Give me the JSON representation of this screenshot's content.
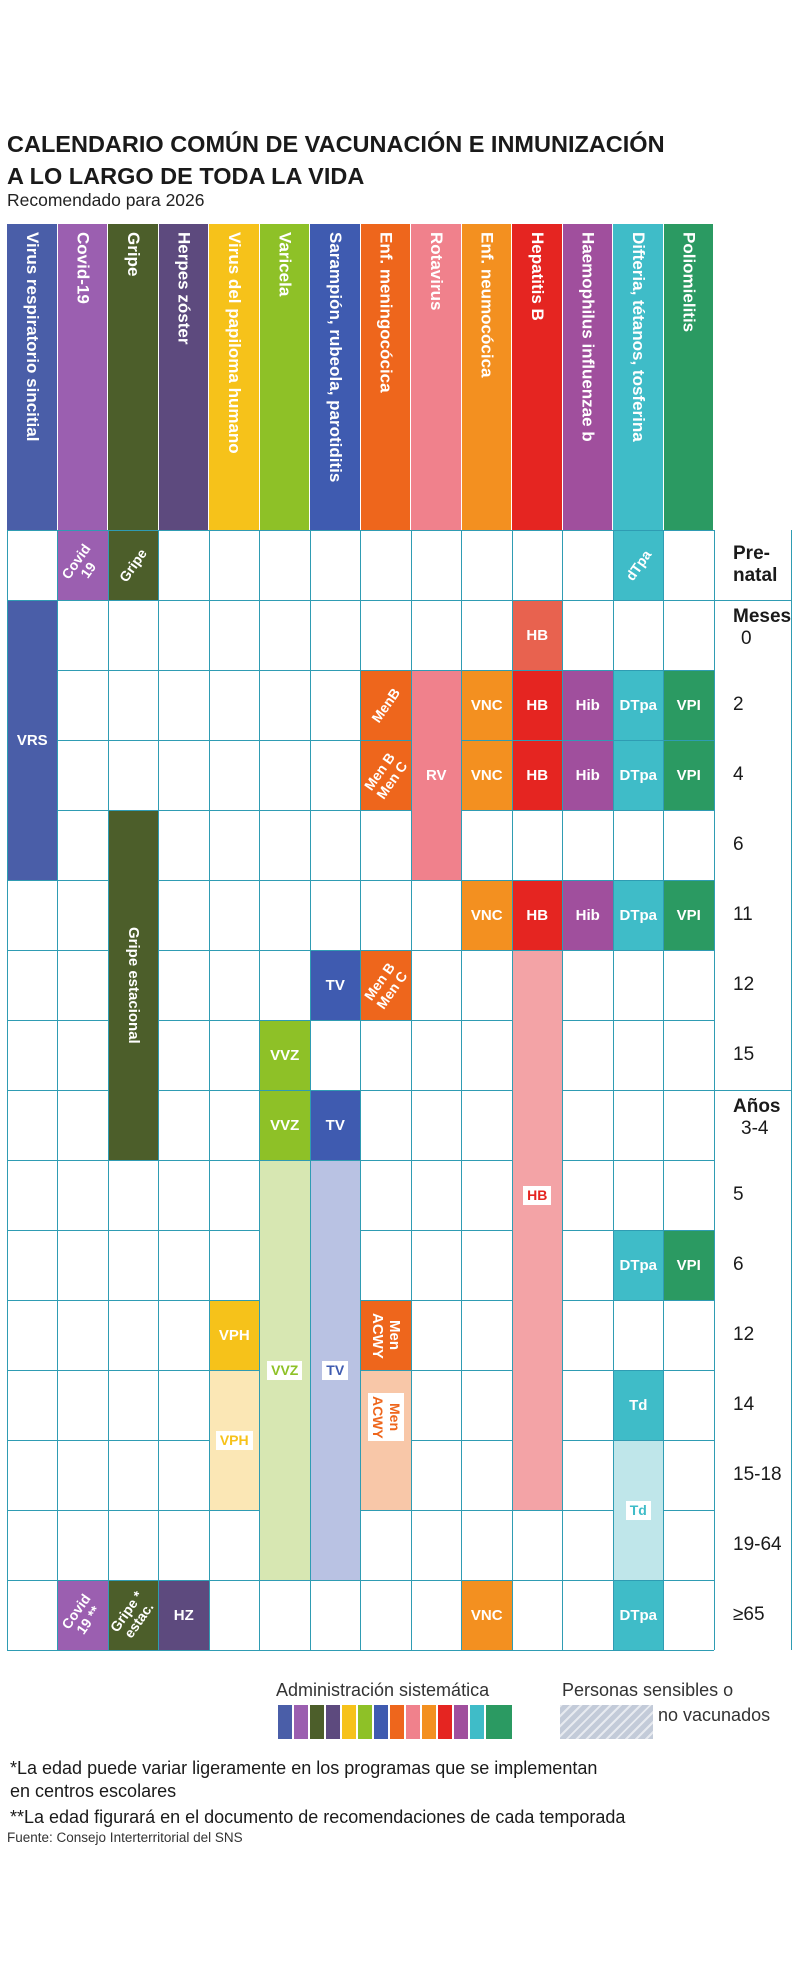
{
  "header": {
    "title_line1": "CALENDARIO COMÚN DE VACUNACIÓN E INMUNIZACIÓN",
    "title_line2": "A LO LARGO DE TODA LA VIDA",
    "subtitle": "Recomendado para 2026"
  },
  "colors": {
    "vrs": "#4a5ea8",
    "covid": "#9b5fb0",
    "gripe": "#4c5e2a",
    "hz": "#5d4a7e",
    "vph": "#f6c21a",
    "varicela": "#8ec127",
    "trivirica": "#3f5bb0",
    "men": "#ee661c",
    "rv": "#f0818c",
    "vnc": "#f39020",
    "hb": "#e52521",
    "hib": "#a04f9d",
    "dtpa": "#3fbcc8",
    "vpi": "#2b9a62",
    "grid": "#2f9cb3"
  },
  "columns": [
    {
      "label": "Virus respiratorio sincitial",
      "color": "#4a5ea8"
    },
    {
      "label": "Covid-19",
      "color": "#9b5fb0"
    },
    {
      "label": "Gripe",
      "color": "#4c5e2a"
    },
    {
      "label": "Herpes zóster",
      "color": "#5d4a7e"
    },
    {
      "label": "Virus del papiloma humano",
      "color": "#f6c21a"
    },
    {
      "label": "Varicela",
      "color": "#8ec127"
    },
    {
      "label": "Sarampión, rubeola, parotiditis",
      "color": "#3f5bb0"
    },
    {
      "label": "Enf. meningocócica",
      "color": "#ee661c"
    },
    {
      "label": "Rotavirus",
      "color": "#f0818c"
    },
    {
      "label": "Enf. neumocócica",
      "color": "#f39020"
    },
    {
      "label": "Hepatitis B",
      "color": "#e52521"
    },
    {
      "label": "Haemophilus influenzae b",
      "color": "#a04f9d"
    },
    {
      "label": "Difteria, tétanos, tosferina",
      "color": "#3fbcc8"
    },
    {
      "label": "Poliomielitis",
      "color": "#2b9a62"
    }
  ],
  "ages": [
    {
      "group": "",
      "label": "Pre-\nnatal"
    },
    {
      "group": "Meses",
      "label": "0"
    },
    {
      "group": "",
      "label": "2"
    },
    {
      "group": "",
      "label": "4"
    },
    {
      "group": "",
      "label": "6"
    },
    {
      "group": "",
      "label": "11"
    },
    {
      "group": "",
      "label": "12"
    },
    {
      "group": "",
      "label": "15"
    },
    {
      "group": "Años",
      "label": "3-4"
    },
    {
      "group": "",
      "label": "5"
    },
    {
      "group": "",
      "label": "6"
    },
    {
      "group": "",
      "label": "12"
    },
    {
      "group": "",
      "label": "14"
    },
    {
      "group": "",
      "label": "15-18"
    },
    {
      "group": "",
      "label": "19-64"
    },
    {
      "group": "",
      "label": "≥65"
    }
  ],
  "cells": [
    {
      "col": 1,
      "row": 0,
      "rows": 1,
      "text": "Covid\n19",
      "color": "#9b5fb0",
      "style": "rot"
    },
    {
      "col": 2,
      "row": 0,
      "rows": 1,
      "text": "Gripe",
      "color": "#4c5e2a",
      "style": "rot"
    },
    {
      "col": 12,
      "row": 0,
      "rows": 1,
      "text": "dTpa",
      "color": "#3fbcc8",
      "style": "rot"
    },
    {
      "col": 0,
      "row": 1,
      "rows": 4,
      "text": "VRS",
      "color": "#4a5ea8",
      "style": ""
    },
    {
      "col": 10,
      "row": 1,
      "rows": 1,
      "text": "HB",
      "color": "#e8624f",
      "style": ""
    },
    {
      "col": 7,
      "row": 2,
      "rows": 1,
      "text": "MenB",
      "color": "#ee661c",
      "style": "rot"
    },
    {
      "col": 8,
      "row": 2,
      "rows": 3,
      "text": "RV",
      "color": "#f0818c",
      "style": ""
    },
    {
      "col": 9,
      "row": 2,
      "rows": 1,
      "text": "VNC",
      "color": "#f39020",
      "style": ""
    },
    {
      "col": 10,
      "row": 2,
      "rows": 1,
      "text": "HB",
      "color": "#e52521",
      "style": ""
    },
    {
      "col": 11,
      "row": 2,
      "rows": 1,
      "text": "Hib",
      "color": "#a04f9d",
      "style": ""
    },
    {
      "col": 12,
      "row": 2,
      "rows": 1,
      "text": "DTpa",
      "color": "#3fbcc8",
      "style": ""
    },
    {
      "col": 13,
      "row": 2,
      "rows": 1,
      "text": "VPI",
      "color": "#2b9a62",
      "style": ""
    },
    {
      "col": 7,
      "row": 3,
      "rows": 1,
      "text": "Men B\nMen C",
      "color": "#ee661c",
      "style": "rot"
    },
    {
      "col": 9,
      "row": 3,
      "rows": 1,
      "text": "VNC",
      "color": "#f39020",
      "style": ""
    },
    {
      "col": 10,
      "row": 3,
      "rows": 1,
      "text": "HB",
      "color": "#e52521",
      "style": ""
    },
    {
      "col": 11,
      "row": 3,
      "rows": 1,
      "text": "Hib",
      "color": "#a04f9d",
      "style": ""
    },
    {
      "col": 12,
      "row": 3,
      "rows": 1,
      "text": "DTpa",
      "color": "#3fbcc8",
      "style": ""
    },
    {
      "col": 13,
      "row": 3,
      "rows": 1,
      "text": "VPI",
      "color": "#2b9a62",
      "style": ""
    },
    {
      "col": 2,
      "row": 4,
      "rows": 5,
      "text": "Gripe estacional",
      "color": "#4c5e2a",
      "style": "vtext"
    },
    {
      "col": 9,
      "row": 5,
      "rows": 1,
      "text": "VNC",
      "color": "#f39020",
      "style": ""
    },
    {
      "col": 10,
      "row": 5,
      "rows": 1,
      "text": "HB",
      "color": "#e52521",
      "style": ""
    },
    {
      "col": 11,
      "row": 5,
      "rows": 1,
      "text": "Hib",
      "color": "#a04f9d",
      "style": ""
    },
    {
      "col": 12,
      "row": 5,
      "rows": 1,
      "text": "DTpa",
      "color": "#3fbcc8",
      "style": ""
    },
    {
      "col": 13,
      "row": 5,
      "rows": 1,
      "text": "VPI",
      "color": "#2b9a62",
      "style": ""
    },
    {
      "col": 6,
      "row": 6,
      "rows": 1,
      "text": "TV",
      "color": "#3f5bb0",
      "style": ""
    },
    {
      "col": 7,
      "row": 6,
      "rows": 1,
      "text": "Men B\nMen C",
      "color": "#ee661c",
      "style": "rot"
    },
    {
      "col": 10,
      "row": 6,
      "rows": 8,
      "text": "",
      "color": "#f3a3a6",
      "style": "hatch"
    },
    {
      "col": 5,
      "row": 7,
      "rows": 1,
      "text": "VVZ",
      "color": "#8ec127",
      "style": ""
    },
    {
      "col": 5,
      "row": 8,
      "rows": 1,
      "text": "VVZ",
      "color": "#8ec127",
      "style": ""
    },
    {
      "col": 6,
      "row": 8,
      "rows": 1,
      "text": "TV",
      "color": "#3f5bb0",
      "style": ""
    },
    {
      "col": 5,
      "row": 9,
      "rows": 6,
      "text": "",
      "color": "#d7e7b2",
      "style": "hatch"
    },
    {
      "col": 6,
      "row": 9,
      "rows": 6,
      "text": "",
      "color": "#b9c2e3",
      "style": "hatch"
    },
    {
      "col": 10,
      "row": 9,
      "rows": 1,
      "text": "HB",
      "color": "#f3a3a6",
      "style": "badge-hb"
    },
    {
      "col": 12,
      "row": 10,
      "rows": 1,
      "text": "DTpa",
      "color": "#3fbcc8",
      "style": ""
    },
    {
      "col": 13,
      "row": 10,
      "rows": 1,
      "text": "VPI",
      "color": "#2b9a62",
      "style": ""
    },
    {
      "col": 4,
      "row": 11,
      "rows": 1,
      "text": "VPH",
      "color": "#f6c21a",
      "style": ""
    },
    {
      "col": 7,
      "row": 11,
      "rows": 1,
      "text": "Men\nACWY",
      "color": "#ee661c",
      "style": "vtext"
    },
    {
      "col": 4,
      "row": 12,
      "rows": 2,
      "text": "",
      "color": "#fbe7b5",
      "style": "plain"
    },
    {
      "col": 7,
      "row": 12,
      "rows": 2,
      "text": "",
      "color": "#f8c7a8",
      "style": "hatch"
    },
    {
      "col": 12,
      "row": 12,
      "rows": 1,
      "text": "Td",
      "color": "#3fbcc8",
      "style": ""
    },
    {
      "col": 12,
      "row": 13,
      "rows": 2,
      "text": "",
      "color": "#bfe6ea",
      "style": "hatch"
    },
    {
      "col": 1,
      "row": 15,
      "rows": 1,
      "text": "Covid\n19 **",
      "color": "#9b5fb0",
      "style": "rot"
    },
    {
      "col": 2,
      "row": 15,
      "rows": 1,
      "text": "Gripe *\nestac.",
      "color": "#4c5e2a",
      "style": "rot"
    },
    {
      "col": 3,
      "row": 15,
      "rows": 1,
      "text": "HZ",
      "color": "#5d4a7e",
      "style": ""
    },
    {
      "col": 9,
      "row": 15,
      "rows": 1,
      "text": "VNC",
      "color": "#f39020",
      "style": ""
    },
    {
      "col": 12,
      "row": 15,
      "rows": 1,
      "text": "DTpa",
      "color": "#3fbcc8",
      "style": ""
    }
  ],
  "badges": [
    {
      "col": 5,
      "row": 12,
      "text": "VVZ",
      "textColor": "#8ec127",
      "pos": "top"
    },
    {
      "col": 6,
      "row": 12,
      "text": "TV",
      "textColor": "#3f5bb0",
      "pos": "top"
    },
    {
      "col": 4,
      "row": 13,
      "text": "VPH",
      "textColor": "#f6c21a",
      "pos": "top"
    },
    {
      "col": 7,
      "row": 12,
      "text": "Men\nACWY",
      "textColor": "#ee661c",
      "pos": "mid-v"
    },
    {
      "col": 12,
      "row": 14,
      "text": "Td",
      "textColor": "#3fbcc8",
      "pos": "top"
    }
  ],
  "legend": {
    "systematic_label": "Administración sistemática",
    "sensitive_label_1": "Personas sensibles o",
    "sensitive_label_2": "no vacunados",
    "swatch_colors": [
      "#4a5ea8",
      "#9b5fb0",
      "#4c5e2a",
      "#5d4a7e",
      "#f6c21a",
      "#8ec127",
      "#3f5bb0",
      "#ee661c",
      "#f0818c",
      "#f39020",
      "#e52521",
      "#a04f9d",
      "#3fbcc8",
      "#2b9a62"
    ]
  },
  "notes": {
    "note1_line1": "*La edad puede variar ligeramente en los programas que se implementan",
    "note1_line2": "en centros escolares",
    "note2": "**La edad figurará en el documento de recomendaciones de cada temporada",
    "source": "Fuente: Consejo Interterritorial del SNS"
  }
}
